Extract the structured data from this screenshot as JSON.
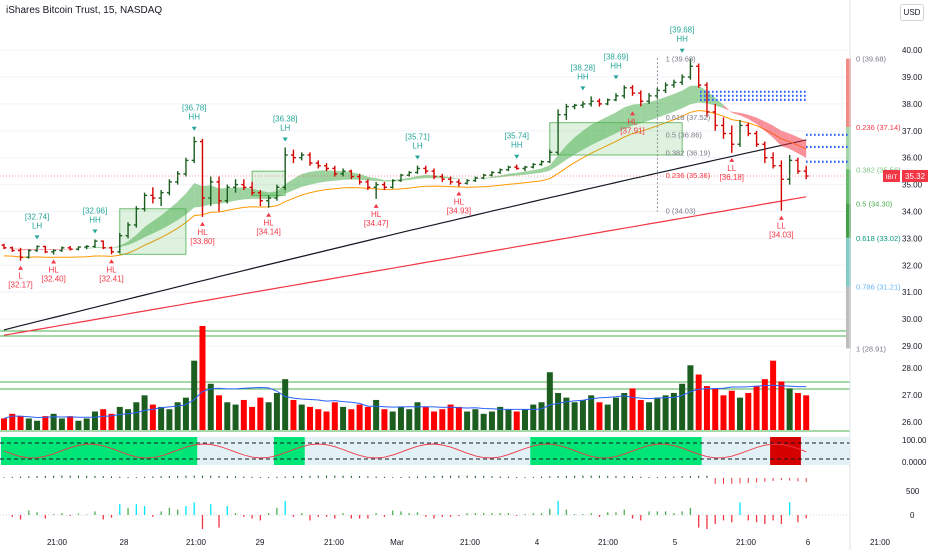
{
  "header": {
    "title": "iShares Bitcoin Trust, 15, NASDAQ",
    "currency_button": "USD"
  },
  "chart_data": {
    "type": "candlestick",
    "price_axis": {
      "ticks": [
        40.0,
        39.0,
        38.0,
        37.0,
        36.0,
        35.0,
        34.0,
        33.0,
        32.0,
        31.0,
        30.0,
        29.0,
        28.0,
        27.0,
        26.0
      ],
      "range": [
        25.5,
        40.6
      ]
    },
    "time_axis": {
      "labels": [
        "21:00",
        "28",
        "21:00",
        "29",
        "21:00",
        "Mar",
        "21:00",
        "4",
        "21:00",
        "5",
        "21:00",
        "6",
        "21:00"
      ]
    },
    "last_price": {
      "symbol": "IBIT",
      "value": "35.32"
    },
    "ohlc": [
      [
        32.75,
        32.8,
        32.6,
        32.65
      ],
      [
        32.65,
        32.7,
        32.5,
        32.55
      ],
      [
        32.55,
        32.65,
        32.17,
        32.3
      ],
      [
        32.3,
        32.6,
        32.25,
        32.55
      ],
      [
        32.55,
        32.74,
        32.5,
        32.7
      ],
      [
        32.7,
        32.72,
        32.45,
        32.5
      ],
      [
        32.5,
        32.6,
        32.4,
        32.55
      ],
      [
        32.55,
        32.7,
        32.5,
        32.65
      ],
      [
        32.65,
        32.72,
        32.55,
        32.6
      ],
      [
        32.6,
        32.7,
        32.55,
        32.68
      ],
      [
        32.68,
        32.75,
        32.6,
        32.7
      ],
      [
        32.7,
        32.96,
        32.65,
        32.9
      ],
      [
        32.9,
        32.92,
        32.6,
        32.65
      ],
      [
        32.65,
        32.7,
        32.41,
        32.5
      ],
      [
        32.5,
        33.2,
        32.45,
        33.1
      ],
      [
        33.1,
        33.6,
        33.0,
        33.5
      ],
      [
        33.5,
        34.2,
        33.4,
        34.1
      ],
      [
        34.1,
        34.7,
        34.0,
        34.6
      ],
      [
        34.6,
        34.9,
        34.3,
        34.5
      ],
      [
        34.5,
        34.8,
        34.2,
        34.7
      ],
      [
        34.7,
        35.2,
        34.6,
        35.1
      ],
      [
        35.1,
        35.5,
        35.0,
        35.4
      ],
      [
        35.4,
        36.0,
        35.3,
        35.9
      ],
      [
        35.9,
        36.78,
        35.8,
        36.6
      ],
      [
        36.6,
        36.7,
        33.8,
        34.5
      ],
      [
        34.5,
        35.3,
        34.2,
        35.1
      ],
      [
        35.1,
        35.3,
        34.0,
        34.4
      ],
      [
        34.4,
        35.0,
        34.3,
        34.9
      ],
      [
        34.9,
        35.2,
        34.7,
        35.0
      ],
      [
        35.0,
        35.2,
        34.8,
        34.9
      ],
      [
        34.9,
        35.1,
        34.6,
        34.7
      ],
      [
        34.7,
        34.8,
        34.2,
        34.4
      ],
      [
        34.4,
        34.6,
        34.14,
        34.5
      ],
      [
        34.5,
        35.0,
        34.4,
        34.9
      ],
      [
        34.9,
        36.38,
        34.8,
        36.1
      ],
      [
        36.1,
        36.3,
        35.8,
        36.0
      ],
      [
        36.0,
        36.2,
        35.9,
        36.1
      ],
      [
        36.1,
        36.2,
        35.7,
        35.8
      ],
      [
        35.8,
        35.9,
        35.6,
        35.7
      ],
      [
        35.7,
        35.8,
        35.5,
        35.6
      ],
      [
        35.6,
        35.7,
        35.3,
        35.4
      ],
      [
        35.4,
        35.6,
        35.3,
        35.5
      ],
      [
        35.5,
        35.55,
        35.2,
        35.3
      ],
      [
        35.3,
        35.4,
        35.0,
        35.1
      ],
      [
        35.1,
        35.2,
        34.8,
        34.9
      ],
      [
        34.9,
        35.1,
        34.47,
        35.0
      ],
      [
        35.0,
        35.1,
        34.8,
        34.9
      ],
      [
        34.9,
        35.2,
        34.85,
        35.15
      ],
      [
        35.15,
        35.4,
        35.1,
        35.35
      ],
      [
        35.35,
        35.5,
        35.3,
        35.45
      ],
      [
        35.45,
        35.71,
        35.4,
        35.6
      ],
      [
        35.6,
        35.7,
        35.4,
        35.5
      ],
      [
        35.5,
        35.6,
        35.2,
        35.3
      ],
      [
        35.3,
        35.4,
        35.1,
        35.2
      ],
      [
        35.2,
        35.3,
        35.0,
        35.1
      ],
      [
        35.1,
        35.2,
        34.93,
        35.05
      ],
      [
        35.05,
        35.2,
        35.0,
        35.15
      ],
      [
        35.15,
        35.3,
        35.1,
        35.25
      ],
      [
        35.25,
        35.4,
        35.2,
        35.35
      ],
      [
        35.35,
        35.5,
        35.3,
        35.45
      ],
      [
        35.45,
        35.6,
        35.4,
        35.55
      ],
      [
        35.55,
        35.7,
        35.5,
        35.65
      ],
      [
        35.65,
        35.74,
        35.55,
        35.6
      ],
      [
        35.6,
        35.7,
        35.5,
        35.65
      ],
      [
        35.65,
        35.8,
        35.6,
        35.75
      ],
      [
        35.75,
        35.9,
        35.7,
        35.85
      ],
      [
        35.85,
        36.3,
        35.8,
        36.2
      ],
      [
        36.2,
        37.8,
        36.1,
        37.6
      ],
      [
        37.6,
        38.0,
        37.4,
        37.9
      ],
      [
        37.9,
        38.0,
        37.8,
        37.95
      ],
      [
        37.95,
        38.1,
        37.85,
        38.0
      ],
      [
        38.0,
        38.28,
        37.9,
        38.1
      ],
      [
        38.1,
        38.2,
        37.9,
        38.0
      ],
      [
        38.0,
        38.2,
        37.95,
        38.15
      ],
      [
        38.15,
        38.4,
        38.1,
        38.3
      ],
      [
        38.3,
        38.69,
        38.2,
        38.6
      ],
      [
        38.6,
        38.7,
        38.3,
        38.4
      ],
      [
        38.4,
        38.5,
        37.91,
        38.1
      ],
      [
        38.1,
        38.4,
        38.0,
        38.3
      ],
      [
        38.3,
        38.6,
        38.2,
        38.5
      ],
      [
        38.5,
        38.8,
        38.4,
        38.7
      ],
      [
        38.7,
        38.9,
        38.6,
        38.8
      ],
      [
        38.8,
        39.1,
        38.7,
        39.0
      ],
      [
        39.0,
        39.68,
        38.9,
        39.4
      ],
      [
        39.4,
        39.5,
        38.6,
        38.7
      ],
      [
        38.7,
        38.8,
        37.5,
        37.7
      ],
      [
        37.7,
        38.0,
        37.0,
        37.2
      ],
      [
        37.2,
        37.5,
        36.7,
        36.9
      ],
      [
        36.9,
        37.2,
        36.18,
        36.5
      ],
      [
        36.5,
        37.4,
        36.4,
        37.2
      ],
      [
        37.2,
        37.3,
        36.8,
        36.9
      ],
      [
        36.9,
        37.0,
        36.4,
        36.5
      ],
      [
        36.5,
        36.6,
        35.8,
        36.0
      ],
      [
        36.0,
        36.2,
        35.6,
        35.7
      ],
      [
        35.7,
        35.9,
        34.03,
        35.2
      ],
      [
        35.2,
        36.1,
        35.0,
        35.9
      ],
      [
        35.9,
        36.0,
        35.4,
        35.5
      ],
      [
        35.5,
        35.7,
        35.2,
        35.32
      ]
    ],
    "volume": [
      5,
      7,
      6,
      5,
      4,
      6,
      7,
      5,
      6,
      4,
      5,
      8,
      9,
      7,
      10,
      9,
      12,
      15,
      11,
      10,
      9,
      12,
      14,
      30,
      45,
      20,
      15,
      12,
      11,
      13,
      10,
      14,
      12,
      16,
      22,
      13,
      11,
      10,
      9,
      8,
      12,
      10,
      9,
      11,
      10,
      13,
      9,
      8,
      10,
      9,
      12,
      10,
      8,
      9,
      11,
      10,
      8,
      9,
      7,
      8,
      10,
      9,
      8,
      9,
      11,
      12,
      25,
      16,
      14,
      12,
      13,
      15,
      12,
      11,
      14,
      16,
      18,
      13,
      12,
      14,
      15,
      16,
      20,
      28,
      24,
      19,
      18,
      15,
      17,
      14,
      16,
      19,
      22,
      30,
      21,
      18,
      16,
      15
    ],
    "annotations": [
      {
        "label": "[32.74]",
        "tag": "LH",
        "price": 32.74,
        "index": 4,
        "pos": "above",
        "color": "#26a69a"
      },
      {
        "label": "[32.17]",
        "tag": "L",
        "price": 32.17,
        "index": 2,
        "pos": "below",
        "color": "#26a69a"
      },
      {
        "label": "[32.40]",
        "tag": "HL",
        "price": 32.4,
        "index": 6,
        "pos": "below",
        "color": "#f23645"
      },
      {
        "label": "[32.96]",
        "tag": "HH",
        "price": 32.96,
        "index": 11,
        "pos": "above",
        "color": "#26a69a"
      },
      {
        "label": "[32.41]",
        "tag": "HL",
        "price": 32.41,
        "index": 13,
        "pos": "below",
        "color": "#f23645"
      },
      {
        "label": "[36.78]",
        "tag": "HH",
        "price": 36.78,
        "index": 23,
        "pos": "above",
        "color": "#26a69a"
      },
      {
        "label": "[33.80]",
        "tag": "HL",
        "price": 33.8,
        "index": 24,
        "pos": "below",
        "color": "#f23645"
      },
      {
        "label": "[34.14]",
        "tag": "HL",
        "price": 34.14,
        "index": 32,
        "pos": "below",
        "color": "#f23645"
      },
      {
        "label": "[36.38]",
        "tag": "LH",
        "price": 36.38,
        "index": 34,
        "pos": "above",
        "color": "#26a69a"
      },
      {
        "label": "[34.47]",
        "tag": "HL",
        "price": 34.47,
        "index": 45,
        "pos": "below",
        "color": "#f23645"
      },
      {
        "label": "[35.71]",
        "tag": "LH",
        "price": 35.71,
        "index": 50,
        "pos": "above",
        "color": "#26a69a"
      },
      {
        "label": "[34.93]",
        "tag": "HL",
        "price": 34.93,
        "index": 55,
        "pos": "below",
        "color": "#f23645"
      },
      {
        "label": "[35.74]",
        "tag": "HH",
        "price": 35.74,
        "index": 62,
        "pos": "above",
        "color": "#26a69a"
      },
      {
        "label": "[38.28]",
        "tag": "HH",
        "price": 38.28,
        "index": 70,
        "pos": "above",
        "color": "#26a69a"
      },
      {
        "label": "[38.69]",
        "tag": "HH",
        "price": 38.69,
        "index": 74,
        "pos": "above",
        "color": "#26a69a"
      },
      {
        "label": "[37.91]",
        "tag": "HL",
        "price": 37.91,
        "index": 76,
        "pos": "below",
        "color": "#f23645"
      },
      {
        "label": "[39.68]",
        "tag": "HH",
        "price": 39.68,
        "index": 82,
        "pos": "above",
        "color": "#26a69a"
      },
      {
        "label": "[36.18]",
        "tag": "LL",
        "price": 36.18,
        "index": 88,
        "pos": "below",
        "color": "#f23645"
      },
      {
        "label": "[34.03]",
        "tag": "LL",
        "price": 34.03,
        "index": 94,
        "pos": "below",
        "color": "#f23645"
      }
    ],
    "fib_retracement": {
      "levels": [
        {
          "ratio": "0",
          "price": 39.68,
          "label": "0 (39.68)",
          "color": "#787b86"
        },
        {
          "ratio": "0.236",
          "price": 37.14,
          "label": "0.236 (37.14)",
          "color": "#f23645"
        },
        {
          "ratio": "0.382",
          "price": 35.56,
          "label": "0.382 (35.56)",
          "color": "#81c784"
        },
        {
          "ratio": "0.5",
          "price": 34.3,
          "label": "0.5 (34.30)",
          "color": "#4caf50"
        },
        {
          "ratio": "0.618",
          "price": 33.02,
          "label": "0.618 (33.02)",
          "color": "#089981"
        },
        {
          "ratio": "0.786",
          "price": 31.21,
          "label": "0.786 (31.21)",
          "color": "#64b5f6"
        },
        {
          "ratio": "1",
          "price": 28.91,
          "label": "1 (28.91)",
          "color": "#787b86"
        }
      ]
    },
    "fib_retracement_inner": {
      "levels": [
        {
          "label": "1 (39.68)",
          "price": 39.68,
          "color": "#787b86"
        },
        {
          "label": "0.618 (37.52)",
          "price": 37.52,
          "color": "#787b86"
        },
        {
          "label": "0.5 (36.86)",
          "price": 36.86,
          "color": "#787b86"
        },
        {
          "label": "0.382 (36.19)",
          "price": 36.19,
          "color": "#787b86"
        },
        {
          "label": "0.236 (35.36)",
          "price": 35.36,
          "color": "#f23645"
        },
        {
          "label": "0 (34.03)",
          "price": 34.03,
          "color": "#787b86"
        }
      ]
    },
    "oscillator_ticks": [
      "100.00",
      "0.0000"
    ],
    "momentum_ticks": [
      "500",
      "0"
    ]
  }
}
